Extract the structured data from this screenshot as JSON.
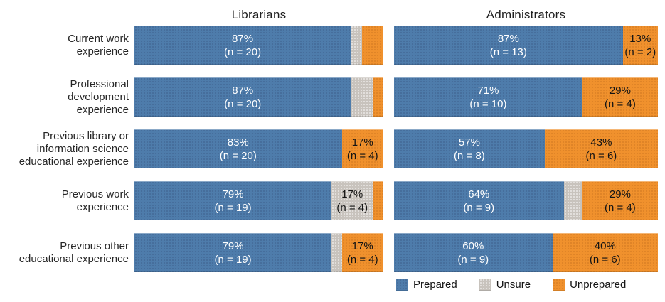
{
  "chart_data": {
    "type": "bar",
    "orientation": "horizontal",
    "stacked": true,
    "title": "",
    "column_titles": {
      "librarians": "Librarians",
      "administrators": "Administrators"
    },
    "legend": {
      "position": "bottom-right",
      "entries": [
        {
          "key": "prepared",
          "label": "Prepared",
          "color": "#4E7CAB"
        },
        {
          "key": "unsure",
          "label": "Unsure",
          "color": "#C8C3BD"
        },
        {
          "key": "unprepared",
          "label": "Unprepared",
          "color": "#F0912D"
        }
      ]
    },
    "categories": [
      "Current work\nexperience",
      "Professional\ndevelopment\nexperience",
      "Previous library or\ninformation science\neducational experience",
      "Previous work\nexperience",
      "Previous other\neducational experience"
    ],
    "rows": [
      {
        "category": "Current work\nexperience",
        "librarians": [
          {
            "key": "prepared",
            "pct": 86.9,
            "label": "87%\n(n = 20)"
          },
          {
            "key": "unsure",
            "pct": 4.4,
            "label": ""
          },
          {
            "key": "unprepared",
            "pct": 8.7,
            "label": ""
          }
        ],
        "administrators": [
          {
            "key": "prepared",
            "pct": 86.7,
            "label": "87%\n(n = 13)"
          },
          {
            "key": "unprepared",
            "pct": 13.3,
            "label": "13%\n(n = 2)"
          }
        ]
      },
      {
        "category": "Professional\ndevelopment\nexperience",
        "librarians": [
          {
            "key": "prepared",
            "pct": 87.0,
            "label": "87%\n(n = 20)"
          },
          {
            "key": "unsure",
            "pct": 8.7,
            "label": ""
          },
          {
            "key": "unprepared",
            "pct": 4.3,
            "label": ""
          }
        ],
        "administrators": [
          {
            "key": "prepared",
            "pct": 71.4,
            "label": "71%\n(n = 10)"
          },
          {
            "key": "unprepared",
            "pct": 28.6,
            "label": "29%\n(n = 4)"
          }
        ]
      },
      {
        "category": "Previous library or\ninformation science\neducational experience",
        "librarians": [
          {
            "key": "prepared",
            "pct": 83.3,
            "label": "83%\n(n = 20)"
          },
          {
            "key": "unprepared",
            "pct": 16.7,
            "label": "17%\n(n = 4)"
          }
        ],
        "administrators": [
          {
            "key": "prepared",
            "pct": 57.1,
            "label": "57%\n(n = 8)"
          },
          {
            "key": "unprepared",
            "pct": 42.9,
            "label": "43%\n(n = 6)"
          }
        ]
      },
      {
        "category": "Previous work\nexperience",
        "librarians": [
          {
            "key": "prepared",
            "pct": 79.2,
            "label": "79%\n(n = 19)"
          },
          {
            "key": "unsure",
            "pct": 16.6,
            "label": "17%\n(n = 4)"
          },
          {
            "key": "unprepared",
            "pct": 4.2,
            "label": ""
          }
        ],
        "administrators": [
          {
            "key": "prepared",
            "pct": 64.3,
            "label": "64%\n(n = 9)"
          },
          {
            "key": "unsure",
            "pct": 7.1,
            "label": ""
          },
          {
            "key": "unprepared",
            "pct": 28.6,
            "label": "29%\n(n = 4)"
          }
        ]
      },
      {
        "category": "Previous other\neducational experience",
        "librarians": [
          {
            "key": "prepared",
            "pct": 79.2,
            "label": "79%\n(n = 19)"
          },
          {
            "key": "unsure",
            "pct": 4.1,
            "label": ""
          },
          {
            "key": "unprepared",
            "pct": 16.7,
            "label": "17%\n(n = 4)"
          }
        ],
        "administrators": [
          {
            "key": "prepared",
            "pct": 60.0,
            "label": "60%\n(n = 9)"
          },
          {
            "key": "unprepared",
            "pct": 40.0,
            "label": "40%\n(n = 6)"
          }
        ]
      }
    ]
  }
}
